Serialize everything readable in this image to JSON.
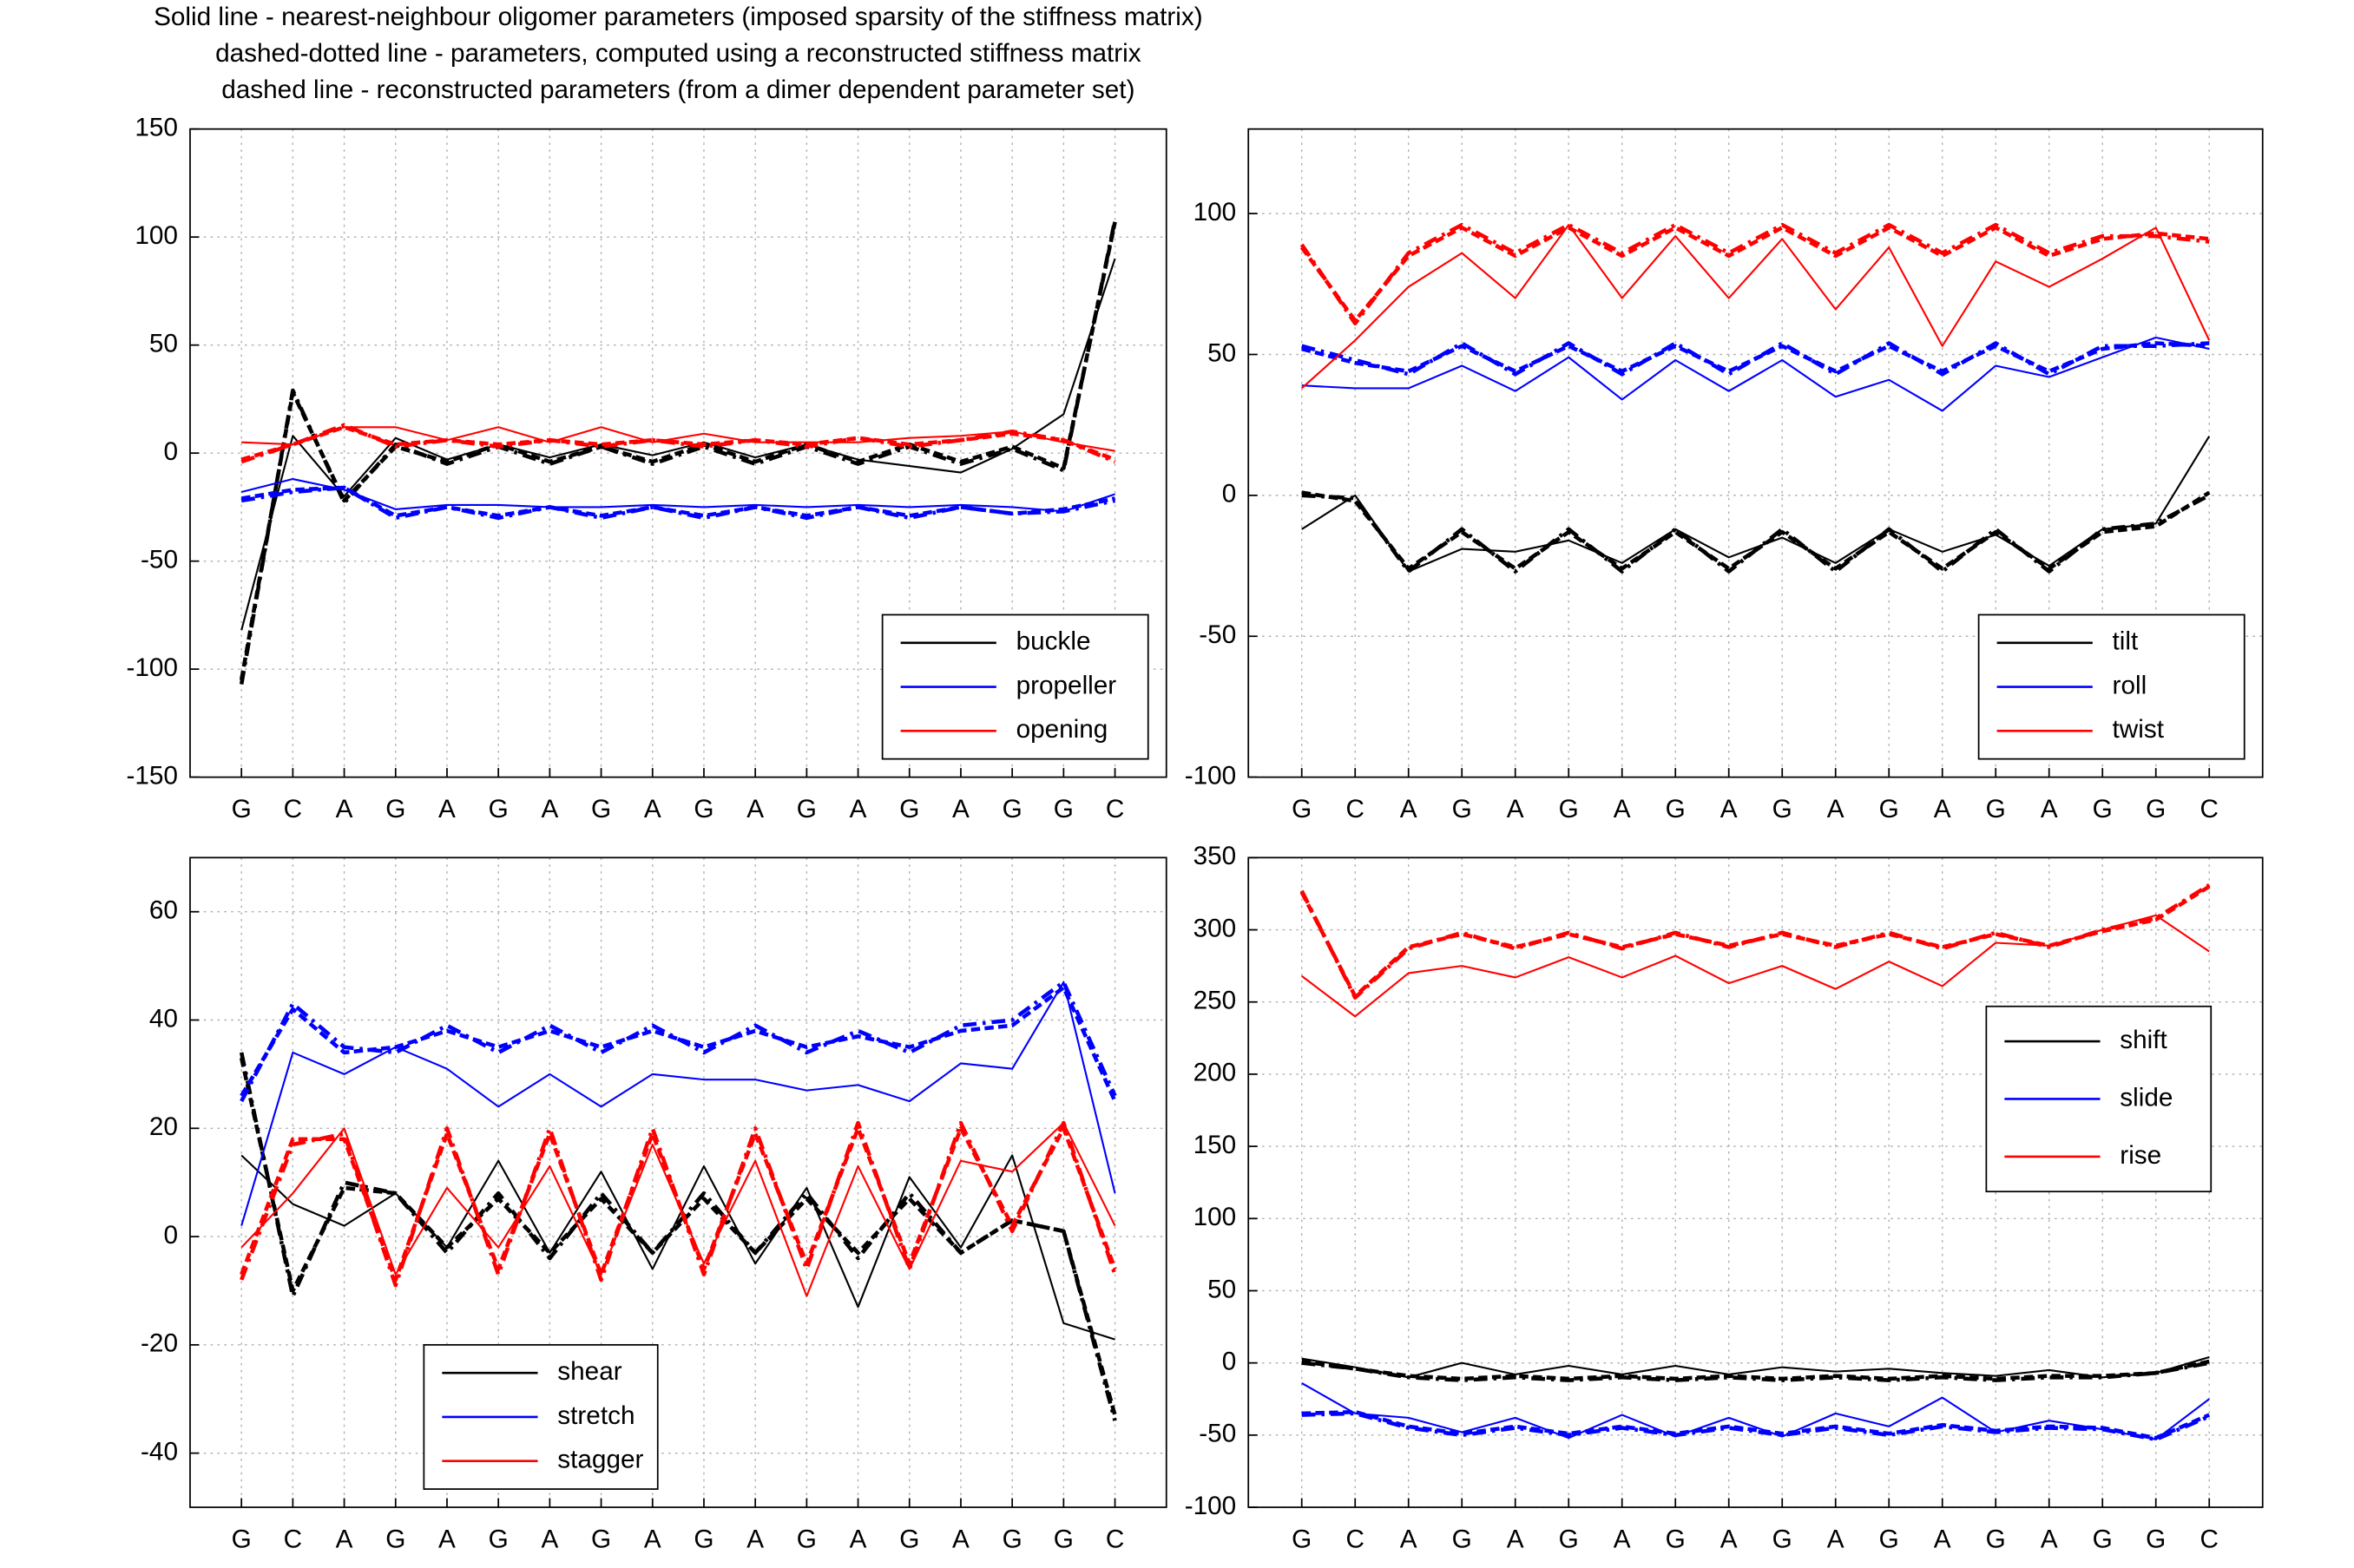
{
  "chart_data": [
    {
      "type": "line",
      "title": [
        "Solid line - nearest-neighbour oligomer parameters (imposed sparsity of the stiffness matrix)",
        "dashed-dotted line - parameters, computed using a reconstructed stiffness matrix",
        "dashed line - reconstructed parameters (from a dimer dependent parameter set)"
      ],
      "categories": [
        "G",
        "C",
        "A",
        "G",
        "A",
        "G",
        "A",
        "G",
        "A",
        "G",
        "A",
        "G",
        "A",
        "G",
        "A",
        "G",
        "G",
        "C"
      ],
      "ylim": [
        -150,
        150
      ],
      "yticks": [
        -150,
        -100,
        -50,
        0,
        50,
        100,
        150
      ],
      "grid": true,
      "legend_position": "lower right",
      "series": [
        {
          "name": "buckle",
          "color": "#000000",
          "style": "solid",
          "values": [
            -82,
            8,
            -20,
            7,
            -3,
            4,
            -2,
            4,
            -1,
            5,
            -2,
            4,
            -3,
            -6,
            -9,
            2,
            18,
            90
          ]
        },
        {
          "color": "#000000",
          "style": "dashdot",
          "values": [
            -107,
            29,
            -23,
            4,
            -5,
            3,
            -5,
            3,
            -5,
            3,
            -5,
            3,
            -5,
            3,
            -5,
            2,
            -8,
            108
          ]
        },
        {
          "color": "#000000",
          "style": "dashed",
          "values": [
            -105,
            28,
            -22,
            3,
            -4,
            4,
            -4,
            3,
            -4,
            4,
            -4,
            4,
            -4,
            4,
            -4,
            3,
            -7,
            107
          ]
        },
        {
          "name": "propeller",
          "color": "#0000ff",
          "style": "solid",
          "values": [
            -18,
            -12,
            -17,
            -26,
            -24,
            -24,
            -25,
            -25,
            -24,
            -25,
            -24,
            -25,
            -24,
            -25,
            -24,
            -25,
            -27,
            -19
          ]
        },
        {
          "color": "#0000ff",
          "style": "dashdot",
          "values": [
            -22,
            -18,
            -16,
            -30,
            -25,
            -30,
            -25,
            -30,
            -25,
            -30,
            -25,
            -30,
            -25,
            -30,
            -25,
            -28,
            -27,
            -22
          ]
        },
        {
          "color": "#0000ff",
          "style": "dashed",
          "values": [
            -21,
            -17,
            -16,
            -29,
            -25,
            -29,
            -25,
            -29,
            -25,
            -29,
            -25,
            -29,
            -25,
            -29,
            -25,
            -28,
            -26,
            -21
          ]
        },
        {
          "name": "opening",
          "color": "#ff0000",
          "style": "solid",
          "values": [
            5,
            4,
            12,
            12,
            6,
            12,
            5,
            12,
            5,
            9,
            5,
            5,
            5,
            7,
            8,
            10,
            5,
            1
          ]
        },
        {
          "color": "#ff0000",
          "style": "dashdot",
          "values": [
            -4,
            4,
            13,
            3,
            6,
            3,
            6,
            3,
            6,
            3,
            6,
            3,
            7,
            3,
            6,
            10,
            6,
            -4
          ]
        },
        {
          "color": "#ff0000",
          "style": "dashed",
          "values": [
            -3,
            4,
            12,
            4,
            6,
            4,
            6,
            4,
            6,
            4,
            6,
            4,
            7,
            4,
            6,
            9,
            6,
            -3
          ]
        }
      ]
    },
    {
      "type": "line",
      "categories": [
        "G",
        "C",
        "A",
        "G",
        "A",
        "G",
        "A",
        "G",
        "A",
        "G",
        "A",
        "G",
        "A",
        "G",
        "A",
        "G",
        "G",
        "C"
      ],
      "ylim": [
        -100,
        130
      ],
      "yticks": [
        -100,
        -50,
        0,
        50,
        100
      ],
      "grid": true,
      "legend_position": "lower right",
      "series": [
        {
          "name": "tilt",
          "color": "#000000",
          "style": "solid",
          "values": [
            -12,
            0,
            -27,
            -19,
            -20,
            -16,
            -24,
            -12,
            -22,
            -15,
            -24,
            -12,
            -20,
            -14,
            -25,
            -12,
            -10,
            21
          ]
        },
        {
          "color": "#000000",
          "style": "dashdot",
          "values": [
            0,
            -1,
            -27,
            -12,
            -27,
            -12,
            -27,
            -12,
            -27,
            -12,
            -27,
            -12,
            -27,
            -12,
            -27,
            -12,
            -10,
            0
          ]
        },
        {
          "color": "#000000",
          "style": "dashed",
          "values": [
            1,
            -2,
            -26,
            -13,
            -26,
            -13,
            -26,
            -13,
            -26,
            -13,
            -26,
            -13,
            -26,
            -13,
            -26,
            -13,
            -11,
            1
          ]
        },
        {
          "name": "roll",
          "color": "#0000ff",
          "style": "solid",
          "values": [
            39,
            38,
            38,
            46,
            37,
            49,
            34,
            48,
            37,
            48,
            35,
            41,
            30,
            46,
            42,
            49,
            56,
            52
          ]
        },
        {
          "color": "#0000ff",
          "style": "dashdot",
          "values": [
            53,
            48,
            43,
            54,
            43,
            54,
            43,
            54,
            43,
            54,
            43,
            54,
            43,
            54,
            43,
            53,
            53,
            54
          ]
        },
        {
          "color": "#0000ff",
          "style": "dashed",
          "values": [
            52,
            47,
            44,
            53,
            44,
            53,
            44,
            53,
            44,
            53,
            44,
            53,
            44,
            53,
            44,
            52,
            54,
            53
          ]
        },
        {
          "name": "twist",
          "color": "#ff0000",
          "style": "solid",
          "values": [
            38,
            55,
            74,
            86,
            70,
            96,
            70,
            92,
            70,
            91,
            66,
            88,
            53,
            83,
            74,
            84,
            95,
            55
          ]
        },
        {
          "color": "#ff0000",
          "style": "dashdot",
          "values": [
            89,
            61,
            86,
            96,
            86,
            96,
            86,
            96,
            86,
            96,
            86,
            96,
            86,
            96,
            86,
            92,
            92,
            90
          ]
        },
        {
          "color": "#ff0000",
          "style": "dashed",
          "values": [
            88,
            62,
            85,
            95,
            85,
            95,
            85,
            95,
            85,
            95,
            85,
            95,
            85,
            95,
            85,
            91,
            93,
            91
          ]
        }
      ]
    },
    {
      "type": "line",
      "categories": [
        "G",
        "C",
        "A",
        "G",
        "A",
        "G",
        "A",
        "G",
        "A",
        "G",
        "A",
        "G",
        "A",
        "G",
        "A",
        "G",
        "G",
        "C"
      ],
      "ylim": [
        -50,
        70
      ],
      "yticks": [
        -40,
        -20,
        0,
        20,
        40,
        60
      ],
      "grid": true,
      "legend_position": "lower center",
      "series": [
        {
          "name": "shear",
          "color": "#000000",
          "style": "solid",
          "values": [
            15,
            6,
            2,
            8,
            -2,
            14,
            -3,
            12,
            -6,
            13,
            -5,
            9,
            -13,
            11,
            -2,
            15,
            -16,
            -19
          ]
        },
        {
          "color": "#000000",
          "style": "dashdot",
          "values": [
            34,
            -11,
            10,
            8,
            -3,
            8,
            -4,
            8,
            -3,
            8,
            -3,
            8,
            -4,
            8,
            -3,
            3,
            1,
            -34
          ]
        },
        {
          "color": "#000000",
          "style": "dashed",
          "values": [
            33,
            -10,
            9,
            8,
            -2,
            7,
            -3,
            7,
            -3,
            7,
            -3,
            7,
            -3,
            7,
            -3,
            3,
            1,
            -33
          ]
        },
        {
          "name": "stretch",
          "color": "#0000ff",
          "style": "solid",
          "values": [
            2,
            34,
            30,
            35,
            31,
            24,
            30,
            24,
            30,
            29,
            29,
            27,
            28,
            25,
            32,
            31,
            47,
            8
          ]
        },
        {
          "color": "#0000ff",
          "style": "dashdot",
          "values": [
            25,
            43,
            35,
            34,
            39,
            34,
            39,
            34,
            39,
            34,
            39,
            34,
            38,
            34,
            39,
            40,
            47,
            26
          ]
        },
        {
          "color": "#0000ff",
          "style": "dashed",
          "values": [
            26,
            42,
            34,
            35,
            38,
            35,
            38,
            35,
            38,
            35,
            38,
            35,
            37,
            35,
            38,
            39,
            46,
            25
          ]
        },
        {
          "name": "stagger",
          "color": "#ff0000",
          "style": "solid",
          "values": [
            -2,
            8,
            20,
            -7,
            9,
            -2,
            13,
            -7,
            17,
            -5,
            14,
            -11,
            13,
            -6,
            14,
            12,
            21,
            2
          ]
        },
        {
          "color": "#ff0000",
          "style": "dashdot",
          "values": [
            -8,
            17,
            19,
            -9,
            20,
            -7,
            20,
            -8,
            20,
            -7,
            20,
            -6,
            21,
            -6,
            21,
            1,
            21,
            -7
          ]
        },
        {
          "color": "#ff0000",
          "style": "dashed",
          "values": [
            -7,
            18,
            18,
            -8,
            19,
            -6,
            19,
            -7,
            19,
            -6,
            19,
            -5,
            20,
            -5,
            20,
            2,
            20,
            -6
          ]
        }
      ]
    },
    {
      "type": "line",
      "categories": [
        "G",
        "C",
        "A",
        "G",
        "A",
        "G",
        "A",
        "G",
        "A",
        "G",
        "A",
        "G",
        "A",
        "G",
        "A",
        "G",
        "G",
        "C"
      ],
      "ylim": [
        -100,
        350
      ],
      "yticks": [
        -100,
        -50,
        0,
        50,
        100,
        150,
        200,
        250,
        300,
        350
      ],
      "grid": true,
      "legend_position": "center right",
      "series": [
        {
          "name": "shift",
          "color": "#000000",
          "style": "solid",
          "values": [
            3,
            -3,
            -10,
            0,
            -8,
            -2,
            -8,
            -2,
            -8,
            -3,
            -6,
            -4,
            -7,
            -9,
            -5,
            -10,
            -7,
            4
          ]
        },
        {
          "color": "#000000",
          "style": "dashdot",
          "values": [
            0,
            -4,
            -10,
            -12,
            -10,
            -12,
            -10,
            -12,
            -10,
            -12,
            -10,
            -12,
            -10,
            -12,
            -10,
            -10,
            -7,
            0
          ]
        },
        {
          "color": "#000000",
          "style": "dashed",
          "values": [
            1,
            -4,
            -9,
            -11,
            -9,
            -11,
            -9,
            -11,
            -9,
            -11,
            -9,
            -11,
            -9,
            -11,
            -9,
            -9,
            -7,
            1
          ]
        },
        {
          "name": "slide",
          "color": "#0000ff",
          "style": "solid",
          "values": [
            -14,
            -35,
            -38,
            -48,
            -38,
            -52,
            -36,
            -51,
            -38,
            -51,
            -35,
            -44,
            -24,
            -48,
            -40,
            -46,
            -53,
            -25
          ]
        },
        {
          "color": "#0000ff",
          "style": "dashdot",
          "values": [
            -36,
            -35,
            -45,
            -50,
            -45,
            -50,
            -45,
            -50,
            -45,
            -50,
            -45,
            -50,
            -44,
            -48,
            -45,
            -46,
            -53,
            -37
          ]
        },
        {
          "color": "#0000ff",
          "style": "dashed",
          "values": [
            -35,
            -34,
            -44,
            -49,
            -44,
            -49,
            -44,
            -49,
            -44,
            -49,
            -44,
            -49,
            -43,
            -47,
            -44,
            -45,
            -52,
            -36
          ]
        },
        {
          "name": "rise",
          "color": "#ff0000",
          "style": "solid",
          "values": [
            268,
            240,
            270,
            275,
            267,
            281,
            267,
            282,
            263,
            275,
            259,
            278,
            261,
            291,
            289,
            300,
            310,
            285
          ]
        },
        {
          "color": "#ff0000",
          "style": "dashdot",
          "values": [
            327,
            253,
            287,
            298,
            287,
            298,
            287,
            298,
            288,
            298,
            288,
            298,
            287,
            298,
            288,
            300,
            308,
            331
          ]
        },
        {
          "color": "#ff0000",
          "style": "dashed",
          "values": [
            326,
            254,
            288,
            297,
            288,
            297,
            288,
            297,
            289,
            297,
            289,
            297,
            288,
            297,
            289,
            299,
            307,
            330
          ]
        }
      ]
    }
  ]
}
